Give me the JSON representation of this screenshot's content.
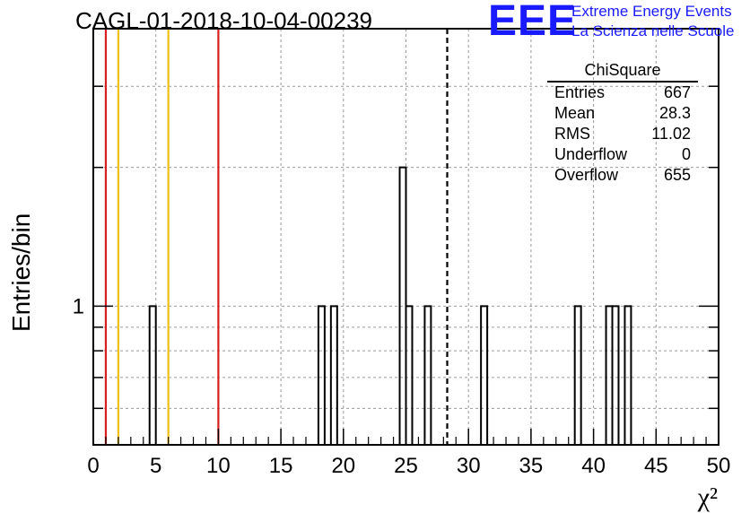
{
  "title": "CAGL-01-2018-10-04-00239",
  "logo": {
    "mark": "EEE",
    "line1": "Extreme Energy Events",
    "line2": "La Scienza nelle Scuole",
    "color": "#1a1aff"
  },
  "stats": {
    "name": "ChiSquare",
    "rows": [
      {
        "key": "Entries",
        "value": "667"
      },
      {
        "key": "Mean",
        "value": "28.3"
      },
      {
        "key": "RMS",
        "value": "11.02"
      },
      {
        "key": "Underflow",
        "value": "0"
      },
      {
        "key": "Overflow",
        "value": "655"
      }
    ]
  },
  "chart_data": {
    "type": "bar",
    "title": "CAGL-01-2018-10-04-00239",
    "xlabel": "χ²",
    "ylabel": "Entries/bin",
    "xlim": [
      0,
      50
    ],
    "ylim": [
      0.5,
      4
    ],
    "yscale": "log",
    "grid": true,
    "bin_width": 0.5,
    "x_ticks": [
      "0",
      "5",
      "10",
      "15",
      "20",
      "25",
      "30",
      "35",
      "40",
      "45",
      "50"
    ],
    "y_ticks": [
      "1"
    ],
    "bins": [
      {
        "x": 4.5,
        "count": 1
      },
      {
        "x": 18.0,
        "count": 1
      },
      {
        "x": 19.0,
        "count": 1
      },
      {
        "x": 24.5,
        "count": 2
      },
      {
        "x": 25.0,
        "count": 1
      },
      {
        "x": 26.5,
        "count": 1
      },
      {
        "x": 31.0,
        "count": 1
      },
      {
        "x": 38.5,
        "count": 1
      },
      {
        "x": 41.0,
        "count": 1
      },
      {
        "x": 41.5,
        "count": 1
      },
      {
        "x": 42.5,
        "count": 1
      }
    ],
    "vertical_lines": [
      {
        "x": 1,
        "color": "#d62020",
        "style": "solid"
      },
      {
        "x": 2,
        "color": "#f0c010",
        "style": "solid"
      },
      {
        "x": 6,
        "color": "#f0c010",
        "style": "solid"
      },
      {
        "x": 10,
        "color": "#d62020",
        "style": "solid"
      },
      {
        "x": 28.3,
        "color": "#000000",
        "style": "dashed"
      }
    ]
  }
}
